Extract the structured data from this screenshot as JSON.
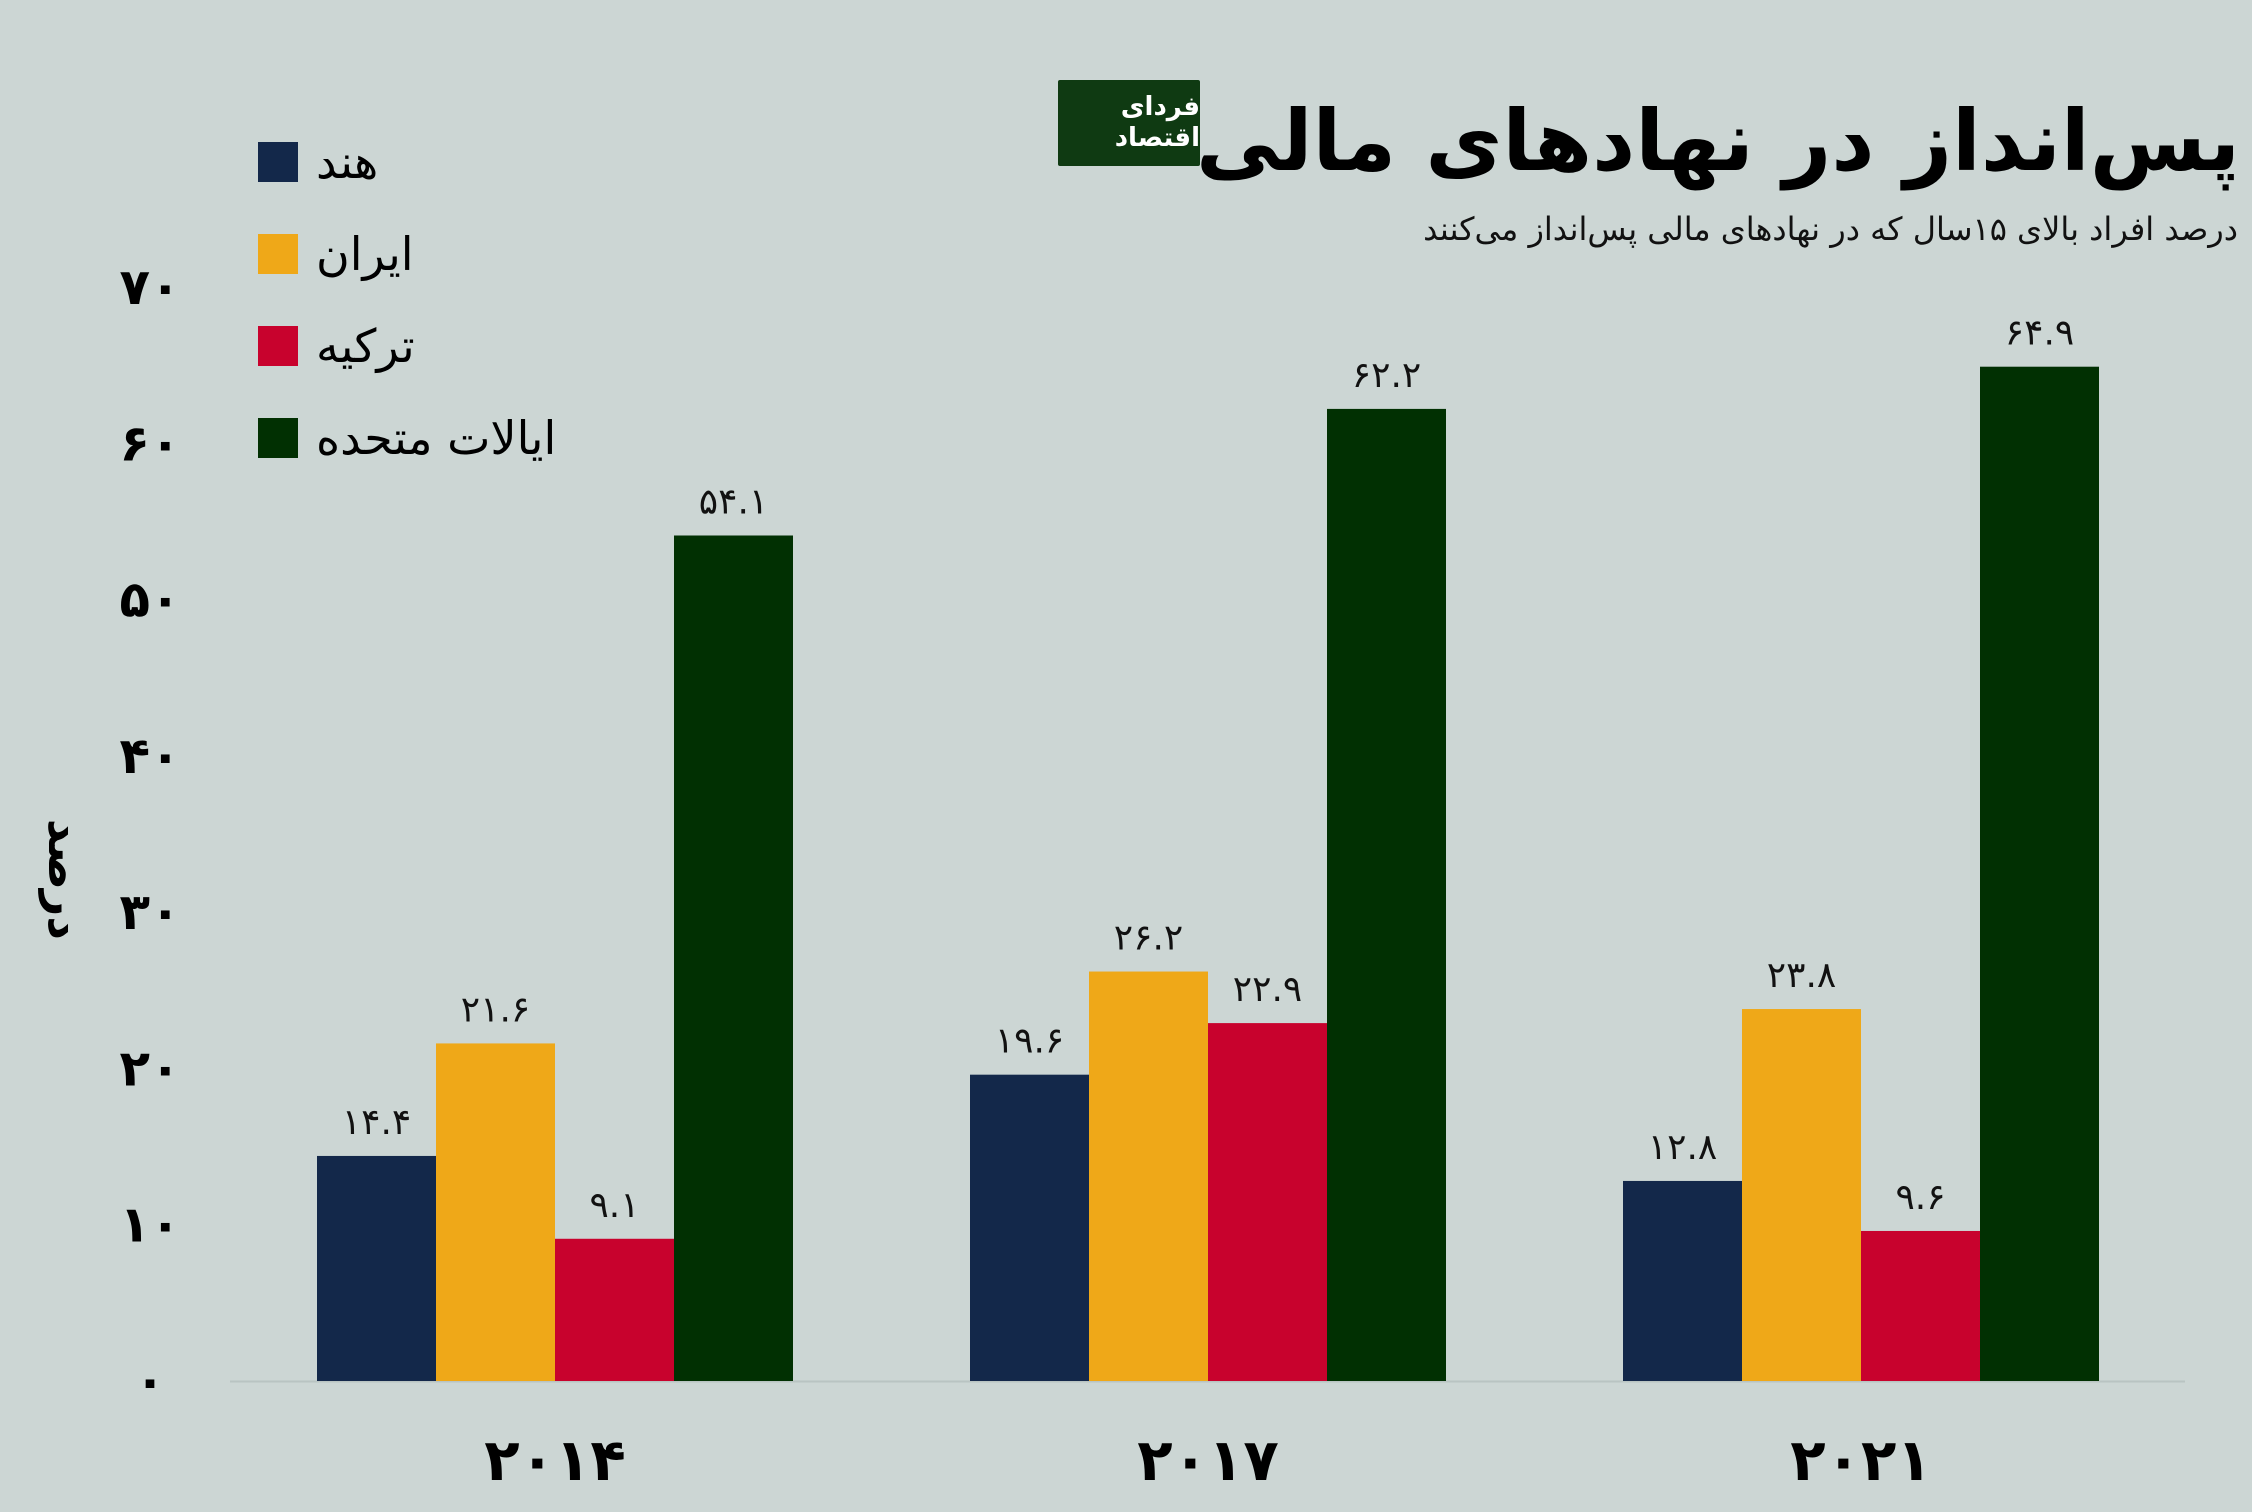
{
  "title": "پس‌انداز در نهادهای مالی",
  "subtitle": "درصد افراد بالای ۱۵سال که در نهادهای مالی پس‌انداز می‌کنند",
  "logo": {
    "text": "فردای اقتصاد"
  },
  "chart_data": {
    "type": "bar",
    "title": "پس‌انداز در نهادهای مالی",
    "subtitle": "درصد افراد بالای ۱۵سال که در نهادهای مالی پس‌انداز می‌کنند",
    "ylabel": "درصد",
    "xlabel": "",
    "ylim": [
      0,
      70
    ],
    "yticks": [
      0,
      10,
      20,
      30,
      40,
      50,
      60,
      70
    ],
    "ytick_labels": [
      "۰",
      "۱۰",
      "۲۰",
      "۳۰",
      "۴۰",
      "۵۰",
      "۶۰",
      "۷۰"
    ],
    "categories": [
      "۲۰۱۴",
      "۲۰۱۷",
      "۲۰۲۱"
    ],
    "legend_position": "top-left",
    "grid": false,
    "series": [
      {
        "name": "هند",
        "color": "#13284a",
        "values": [
          14.4,
          19.6,
          12.8
        ],
        "labels": [
          "۱۴.۴",
          "۱۹.۶",
          "۱۲.۸"
        ]
      },
      {
        "name": "ایران",
        "color": "#efa818",
        "values": [
          21.6,
          26.2,
          23.8
        ],
        "labels": [
          "۲۱.۶",
          "۲۶.۲",
          "۲۳.۸"
        ]
      },
      {
        "name": "ترکیه",
        "color": "#c8022d",
        "values": [
          9.1,
          22.9,
          9.6
        ],
        "labels": [
          "۹.۱",
          "۲۲.۹",
          "۹.۶"
        ]
      },
      {
        "name": "ایالات متحده",
        "color": "#013002",
        "values": [
          54.1,
          62.2,
          64.9
        ],
        "labels": [
          "۵۴.۱",
          "۶۲.۲",
          "۶۴.۹"
        ]
      }
    ]
  }
}
